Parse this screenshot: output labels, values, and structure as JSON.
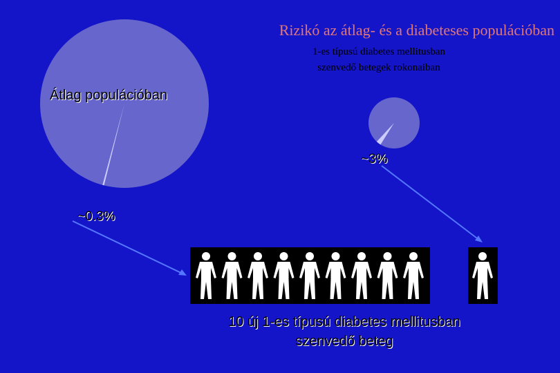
{
  "title": "Rizikó az átlag- és a diabeteses populációban",
  "chart_data": [
    {
      "type": "pie",
      "title": "Átlag populációban",
      "values": [
        0.3
      ],
      "value_labels": [
        "~0.3%"
      ],
      "color": "#ccccff",
      "background_color": "#6666cc"
    },
    {
      "type": "pie",
      "title_lines": [
        "1-es típusú diabetes mellitusban",
        "szenvedő betegek rokonaiban"
      ],
      "values": [
        3
      ],
      "value_labels": [
        "~3%"
      ],
      "color": "#ccccff",
      "background_color": "#6666cc"
    }
  ],
  "caption_lines": [
    "10 új 1-es típusú diabetes mellitusban",
    "szenvedő beteg"
  ]
}
